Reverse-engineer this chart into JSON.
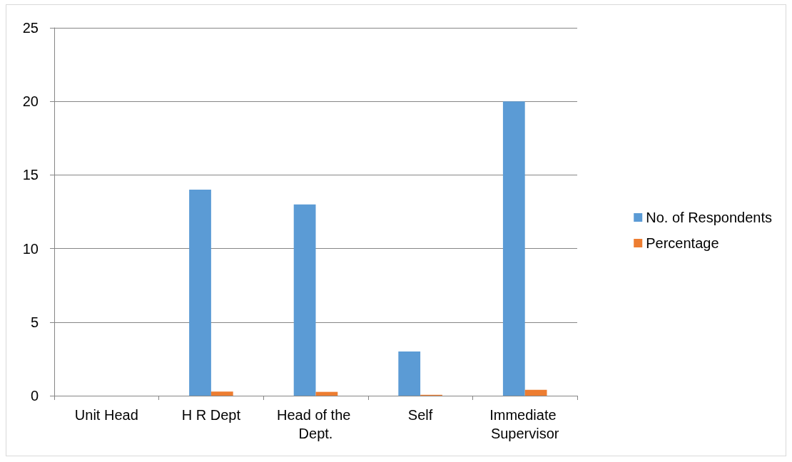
{
  "chart_data": {
    "type": "bar",
    "categories": [
      "Unit Head",
      "H R Dept",
      "Head of the Dept.",
      "Self",
      "Immediate Supervisor"
    ],
    "series": [
      {
        "name": "No. of Respondents",
        "color": "#5b9bd5",
        "values": [
          0,
          14,
          13,
          3,
          20
        ]
      },
      {
        "name": "Percentage",
        "color": "#ed7d31",
        "values": [
          0,
          0.28,
          0.26,
          0.06,
          0.4
        ]
      }
    ],
    "ylim": [
      0,
      25
    ],
    "yticks": [
      0,
      5,
      10,
      15,
      20,
      25
    ],
    "grid": "y",
    "legend": "right"
  }
}
